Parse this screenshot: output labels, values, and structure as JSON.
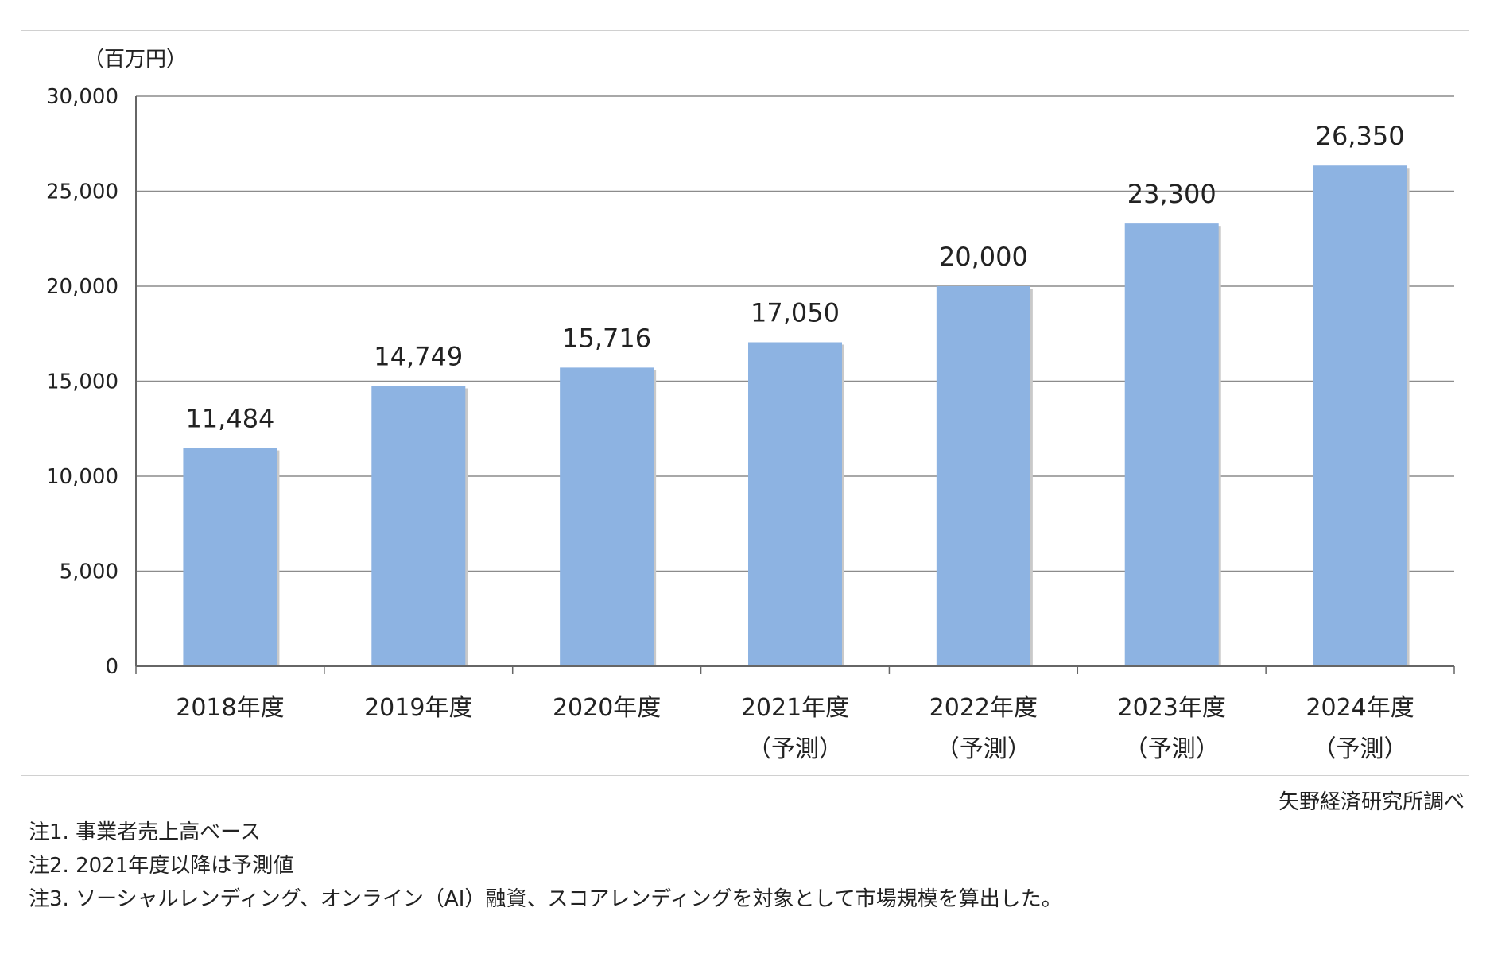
{
  "chart_data": {
    "type": "bar",
    "unit": "（百万円）",
    "categories": [
      [
        "2018年度"
      ],
      [
        "2019年度"
      ],
      [
        "2020年度"
      ],
      [
        "2021年度",
        "（予測）"
      ],
      [
        "2022年度",
        "（予測）"
      ],
      [
        "2023年度",
        "（予測）"
      ],
      [
        "2024年度",
        "（予測）"
      ]
    ],
    "values": [
      11484,
      14749,
      15716,
      17050,
      20000,
      23300,
      26350
    ],
    "value_labels": [
      "11,484",
      "14,749",
      "15,716",
      "17,050",
      "20,000",
      "23,300",
      "26,350"
    ],
    "yticks": [
      "0",
      "5,000",
      "10,000",
      "15,000",
      "20,000",
      "25,000",
      "30,000"
    ],
    "ylim": [
      0,
      30000
    ],
    "grid": true,
    "bar_color": "#8db3e2"
  },
  "source": "矢野経済研究所調べ",
  "notes": [
    "注1. 事業者売上高ベース",
    "注2. 2021年度以降は予測値",
    "注3. ソーシャルレンディング、オンライン（AI）融資、スコアレンディングを対象として市場規模を算出した。"
  ]
}
